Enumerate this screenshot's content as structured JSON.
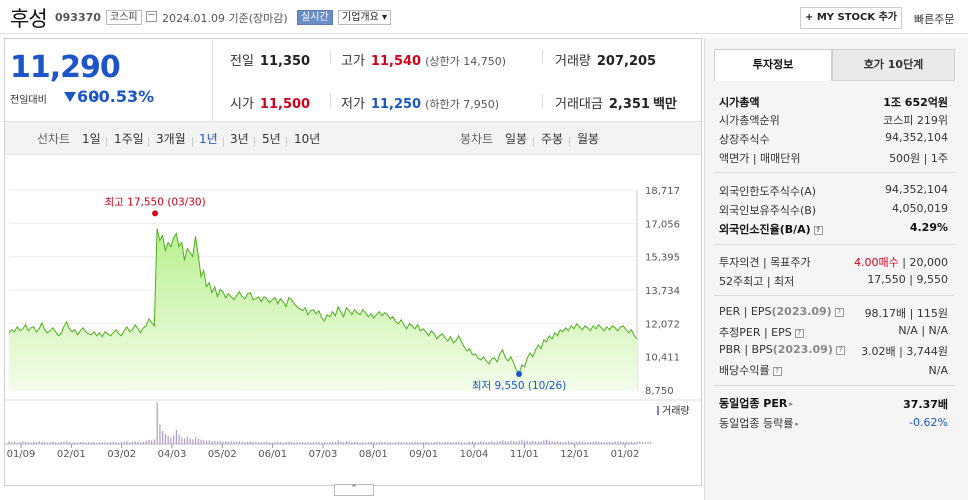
{
  "header": {
    "name": "후성",
    "code": "093370",
    "market": "코스피",
    "date_text": "2024.01.09  기준(장마감)",
    "realtime": "실시간",
    "corp_info": "기업개요",
    "mystock": "+ MY STOCK 추가",
    "quick_order": "빠른주문"
  },
  "quote": {
    "price": "11,290",
    "prev_label": "전일대비",
    "change": "60",
    "rate": "-0.53%",
    "prev_close_label": "전일",
    "prev_close": "11,350",
    "high_label": "고가",
    "high": "11,540",
    "upper_limit_label": "(상한가",
    "upper_limit": "14,750)",
    "volume_label": "거래량",
    "volume": "207,205",
    "open_label": "시가",
    "open": "11,500",
    "low_label": "저가",
    "low": "11,250",
    "lower_limit_label": "(하한가",
    "lower_limit": "7,950)",
    "amount_label": "거래대금",
    "amount": "2,351",
    "amount_unit": "백만"
  },
  "tabs": {
    "line_cat": "선차트",
    "line": [
      "1일",
      "1주일",
      "3개월",
      "1년",
      "3년",
      "5년",
      "10년"
    ],
    "active": "1년",
    "candle_cat": "봉차트",
    "candle": [
      "일봉",
      "주봉",
      "월봉"
    ]
  },
  "chart_data": {
    "type": "area",
    "y_ticks": [
      "18,717",
      "17,056",
      "15,395",
      "13,734",
      "12,072",
      "10,411",
      "8,750"
    ],
    "ylim": [
      8750,
      18717
    ],
    "x_ticks": [
      "01/09",
      "02/01",
      "03/02",
      "04/03",
      "05/02",
      "06/01",
      "07/03",
      "08/01",
      "09/01",
      "10/04",
      "11/01",
      "12/01",
      "01/02"
    ],
    "high_annotation": "최고 17,550 (03/30)",
    "low_annotation": "최저 9,550 (10/26)",
    "volume_label": "거래량",
    "series_color": "#4caf1c",
    "price": [
      11600,
      11750,
      11650,
      11900,
      11700,
      11800,
      12000,
      11700,
      11850,
      11900,
      11650,
      11800,
      12100,
      11750,
      11600,
      11700,
      11850,
      11650,
      11450,
      11550,
      11900,
      12150,
      11800,
      11650,
      11750,
      11500,
      11700,
      11850,
      11650,
      11550,
      11500,
      11650,
      11450,
      11600,
      11400,
      11650,
      11550,
      11450,
      11600,
      11750,
      11550,
      11450,
      11700,
      11900,
      11650,
      11750,
      12000,
      11800,
      11600,
      11850,
      11950,
      12300,
      12100,
      11950,
      16800,
      16200,
      16450,
      15700,
      16100,
      15900,
      16300,
      16550,
      15900,
      16100,
      15200,
      15800,
      15600,
      15400,
      16400,
      15500,
      14400,
      14700,
      13900,
      14100,
      13600,
      13900,
      13400,
      13750,
      13650,
      13350,
      13550,
      13400,
      13250,
      13450,
      13650,
      13400,
      13300,
      13550,
      13600,
      13250,
      13300,
      13400,
      13150,
      13400,
      13300,
      13100,
      13250,
      13350,
      13050,
      13300,
      13150,
      12900,
      13350,
      13250,
      13050,
      12900,
      12800,
      12700,
      12850,
      12500,
      12700,
      12750,
      12550,
      12700,
      12350,
      12200,
      12500,
      12400,
      12650,
      12450,
      12900,
      12650,
      12400,
      12850,
      12700,
      12500,
      12750,
      12600,
      12500,
      12750,
      12600,
      12400,
      12550,
      12350,
      12500,
      12650,
      12450,
      12600,
      12500,
      12300,
      12400,
      12150,
      12050,
      12250,
      12000,
      11800,
      12050,
      11950,
      11800,
      12000,
      11700,
      11800,
      11650,
      11450,
      11700,
      11550,
      11300,
      11450,
      11550,
      11350,
      11200,
      11400,
      11100,
      11200,
      11450,
      11150,
      10900,
      10700,
      10800,
      10500,
      10550,
      10350,
      10250,
      10400,
      10200,
      10050,
      10300,
      10350,
      10150,
      10550,
      10750,
      10350,
      10200,
      10400,
      10100,
      9750,
      9550,
      10000,
      9900,
      10350,
      10600,
      10400,
      10750,
      11000,
      10800,
      11250,
      11150,
      11450,
      11300,
      11600,
      11450,
      11750,
      11650,
      11850,
      11700,
      11950,
      11800,
      12050,
      11900,
      11750,
      11950,
      11850,
      11700,
      11950,
      11800,
      12000,
      11850,
      11700,
      11900,
      11750,
      11950,
      11850,
      11700,
      11900,
      11950,
      11750,
      11600,
      11750,
      11450,
      11300
    ],
    "volume": [
      6,
      4,
      5,
      3,
      4,
      6,
      5,
      4,
      3,
      5,
      4,
      6,
      5,
      4,
      3,
      4,
      5,
      4,
      3,
      4,
      5,
      6,
      4,
      3,
      4,
      3,
      4,
      5,
      3,
      4,
      3,
      4,
      3,
      4,
      3,
      4,
      3,
      4,
      5,
      4,
      3,
      4,
      5,
      6,
      4,
      5,
      6,
      5,
      4,
      5,
      7,
      9,
      7,
      10,
      90,
      42,
      28,
      22,
      18,
      14,
      18,
      30,
      20,
      14,
      12,
      16,
      12,
      10,
      14,
      11,
      9,
      8,
      7,
      8,
      6,
      7,
      6,
      7,
      5,
      6,
      5,
      6,
      5,
      5,
      6,
      5,
      4,
      5,
      5,
      4,
      5,
      4,
      3,
      4,
      5,
      4,
      3,
      4,
      5,
      4,
      3,
      4,
      5,
      4,
      3,
      4,
      5,
      4,
      3,
      4,
      3,
      4,
      5,
      4,
      3,
      4,
      3,
      4,
      5,
      4,
      8,
      5,
      4,
      6,
      5,
      4,
      5,
      4,
      3,
      4,
      3,
      4,
      5,
      4,
      3,
      4,
      5,
      4,
      3,
      4,
      3,
      4,
      5,
      4,
      3,
      4,
      3,
      4,
      5,
      4,
      3,
      4,
      5,
      4,
      3,
      4,
      5,
      4,
      3,
      4,
      5,
      4,
      3,
      4,
      5,
      4,
      3,
      4,
      5,
      6,
      5,
      4,
      6,
      5,
      4,
      5,
      6,
      4,
      5,
      6,
      8,
      6,
      5,
      7,
      6,
      5,
      7,
      9,
      7,
      6,
      5,
      7,
      6,
      5,
      6,
      8,
      9,
      7,
      6,
      5,
      6,
      5,
      4,
      5,
      6,
      5,
      4,
      5,
      6,
      5,
      4,
      5,
      4,
      5,
      6,
      5,
      4,
      5,
      4,
      5,
      4,
      5,
      6,
      5,
      4,
      5,
      4,
      5,
      4,
      5,
      6,
      5,
      4,
      5,
      4
    ]
  },
  "info": {
    "tab_active": "투자정보",
    "tab_other": "호가 10단계",
    "market_cap_label": "시가총액",
    "market_cap": "1조 652억원",
    "rank_label": "시가총액순위",
    "rank": "코스피 219위",
    "shares_label": "상장주식수",
    "shares": "94,352,104",
    "par_label": "액면가 | 매매단위",
    "par": "500원 | 1주",
    "foreign_limit_label": "외국인한도주식수(A)",
    "foreign_limit": "94,352,104",
    "foreign_hold_label": "외국인보유주식수(B)",
    "foreign_hold": "4,050,019",
    "foreign_rate_label": "외국인소진율(B/A)",
    "foreign_rate": "4.29%",
    "opinion_label": "투자의견 | 목표주가",
    "opinion": "4.00매수",
    "target": " | 20,000",
    "week52_label": "52주최고 | 최저",
    "week52": "17,550 | 9,550",
    "per_label": "PER | EPS",
    "per_year": "(2023.09)",
    "per": "98.17배 | 115원",
    "est_per_label": "추정PER | EPS",
    "est_per": "N/A | N/A",
    "pbr_label": "PBR | BPS",
    "pbr_year": "(2023.09)",
    "pbr": "3.02배 | 3,744원",
    "div_label": "배당수익률",
    "div": "N/A",
    "ind_per_label": "동일업종 PER",
    "ind_per": "37.37배",
    "ind_rate_label": "동일업종 등락률",
    "ind_rate": "-0.62%"
  }
}
